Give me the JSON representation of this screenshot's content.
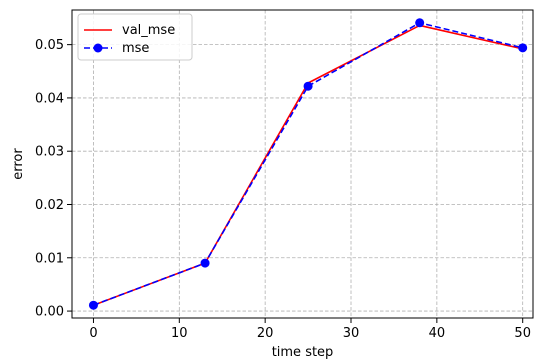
{
  "chart_data": {
    "type": "line",
    "title": "",
    "xlabel": "time step",
    "ylabel": "error",
    "xlim": [
      -2.5,
      51.2
    ],
    "ylim": [
      -0.0013,
      0.0565
    ],
    "xticks": [
      0,
      10,
      20,
      30,
      40,
      50
    ],
    "yticks": [
      0.0,
      0.01,
      0.02,
      0.03,
      0.04,
      0.05
    ],
    "xtick_labels": [
      "0",
      "10",
      "20",
      "30",
      "40",
      "50"
    ],
    "ytick_labels": [
      "0.00",
      "0.01",
      "0.02",
      "0.03",
      "0.04",
      "0.05"
    ],
    "grid": true,
    "legend_position": "top-left",
    "x": [
      0,
      13,
      25,
      38,
      50
    ],
    "series": [
      {
        "name": "val_mse",
        "values": [
          0.0011,
          0.009,
          0.0428,
          0.0536,
          0.0492
        ],
        "color": "#ff0000",
        "line_style": "solid",
        "marker": "none"
      },
      {
        "name": "mse",
        "values": [
          0.0011,
          0.009,
          0.0422,
          0.0541,
          0.0494
        ],
        "color": "#0000ff",
        "line_style": "dashed",
        "marker": "circle"
      }
    ]
  }
}
